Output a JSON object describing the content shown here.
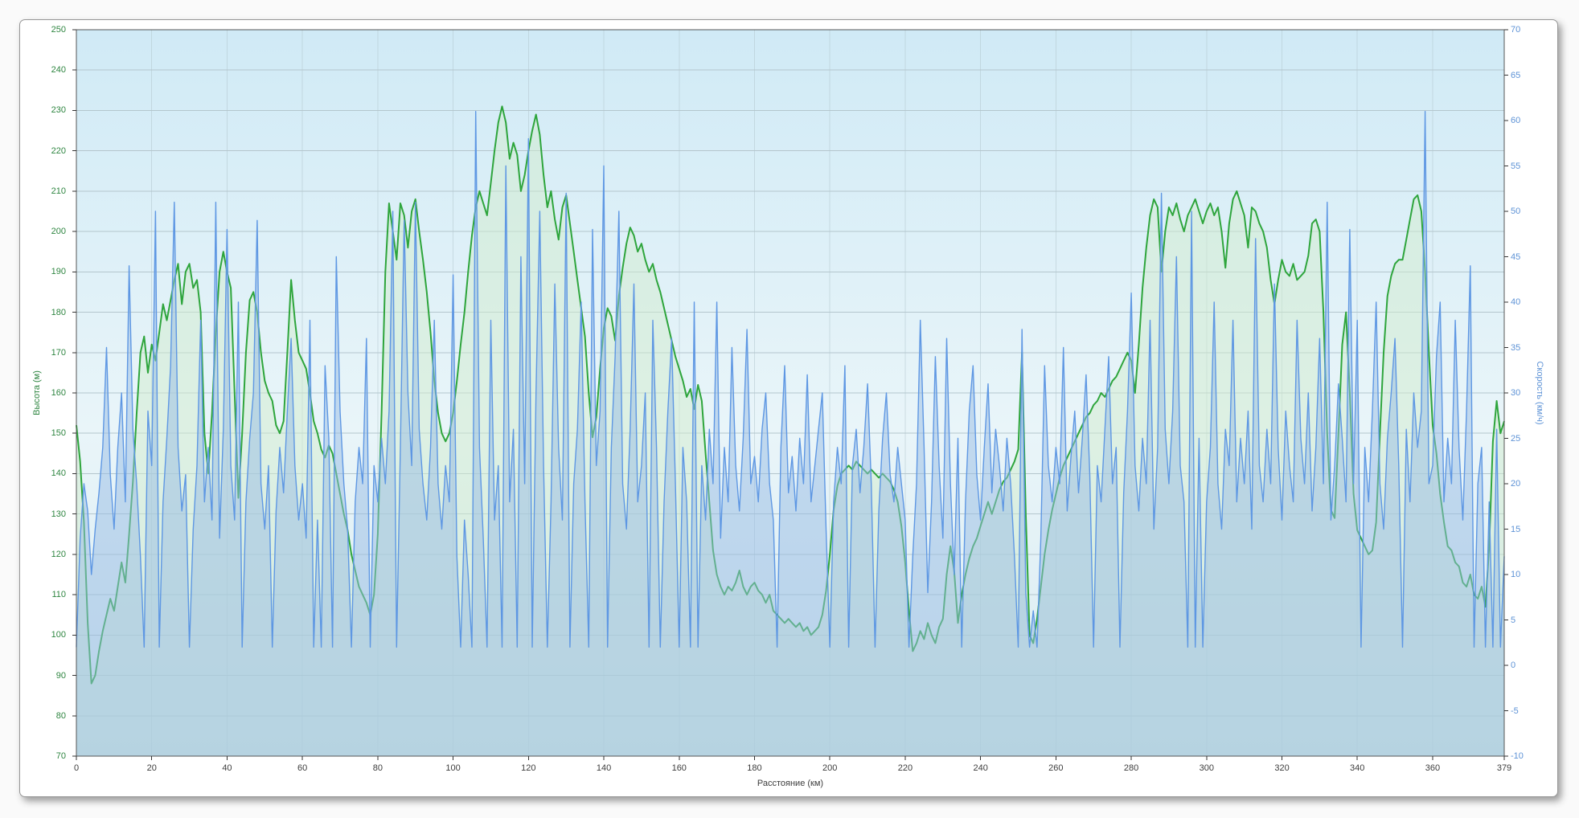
{
  "window": {
    "page_background": "#fafafa",
    "card_background": "#ffffff",
    "card_border": "#979797"
  },
  "chart_data": {
    "type": "line",
    "title": "",
    "legend": "none",
    "grid": true,
    "plot": {
      "bg_top": "#d0eaf6",
      "bg_mid": "#e9f5f9",
      "bg_bottom": "#d9ebf1",
      "gridline_color": "#b4c6cd",
      "vgrid_color": "rgba(178,198,206,0.55)",
      "border_color": "#555555",
      "tick_color": "#333333"
    },
    "x_axis": {
      "label": "Расстояние (км)",
      "min": 0,
      "max": 379,
      "step_km": 1,
      "ticks": [
        0,
        20,
        40,
        60,
        80,
        100,
        120,
        140,
        160,
        180,
        200,
        220,
        240,
        260,
        280,
        300,
        320,
        340,
        360,
        379
      ],
      "text_color": "#3c3c3c"
    },
    "y_left": {
      "label": "Высота (м)",
      "min": 70,
      "max": 250,
      "ticks": [
        70,
        80,
        90,
        100,
        110,
        120,
        130,
        140,
        150,
        160,
        170,
        180,
        190,
        200,
        210,
        220,
        230,
        240,
        250
      ],
      "text_color": "#2e8540"
    },
    "y_right": {
      "label": "Скорость (км/ч)",
      "min": -10,
      "max": 70,
      "ticks": [
        -10,
        -5,
        0,
        5,
        10,
        15,
        20,
        25,
        30,
        35,
        40,
        45,
        50,
        55,
        60,
        65,
        70
      ],
      "text_color": "#5e93d6"
    },
    "series": [
      {
        "name": "Высота",
        "axis": "left",
        "line_color": "#2ea53c",
        "line_width": 2,
        "fill_color": "rgba(210,236,205,0.5)",
        "values": [
          152,
          143,
          128,
          103,
          88,
          90,
          96,
          101,
          105,
          109,
          106,
          112,
          118,
          113,
          125,
          138,
          155,
          170,
          174,
          165,
          172,
          168,
          175,
          182,
          178,
          183,
          188,
          192,
          182,
          190,
          192,
          186,
          188,
          180,
          150,
          140,
          155,
          175,
          190,
          195,
          190,
          186,
          160,
          134,
          150,
          170,
          183,
          185,
          180,
          170,
          163,
          160,
          158,
          152,
          150,
          153,
          170,
          188,
          178,
          170,
          168,
          166,
          160,
          153,
          150,
          146,
          144,
          147,
          145,
          140,
          135,
          130,
          126,
          120,
          116,
          112,
          110,
          108,
          105,
          110,
          125,
          155,
          190,
          207,
          200,
          193,
          207,
          204,
          196,
          205,
          208,
          200,
          193,
          185,
          175,
          163,
          155,
          150,
          148,
          150,
          155,
          163,
          172,
          180,
          190,
          199,
          206,
          210,
          207,
          204,
          212,
          220,
          227,
          231,
          227,
          218,
          222,
          219,
          210,
          214,
          220,
          225,
          229,
          224,
          214,
          206,
          210,
          203,
          198,
          206,
          209,
          202,
          195,
          188,
          181,
          174,
          160,
          149,
          154,
          166,
          176,
          181,
          179,
          173,
          184,
          191,
          197,
          201,
          199,
          195,
          197,
          193,
          190,
          192,
          188,
          185,
          181,
          177,
          173,
          169,
          166,
          163,
          159,
          161,
          156,
          162,
          158,
          145,
          133,
          121,
          115,
          112,
          110,
          112,
          111,
          113,
          116,
          112,
          110,
          112,
          113,
          111,
          110,
          108,
          110,
          106,
          105,
          104,
          103,
          104,
          103,
          102,
          103,
          101,
          102,
          100,
          101,
          102,
          105,
          111,
          120,
          131,
          137,
          140,
          141,
          142,
          141,
          143,
          142,
          141,
          140,
          141,
          140,
          139,
          140,
          139,
          138,
          136,
          133,
          127,
          118,
          106,
          96,
          98,
          101,
          99,
          103,
          100,
          98,
          102,
          104,
          115,
          122,
          116,
          103,
          110,
          115,
          119,
          122,
          124,
          127,
          130,
          133,
          130,
          133,
          136,
          138,
          139,
          141,
          143,
          146,
          170,
          130,
          100,
          98,
          104,
          112,
          120,
          126,
          131,
          135,
          139,
          142,
          144,
          146,
          148,
          150,
          152,
          154,
          155,
          157,
          158,
          160,
          159,
          161,
          163,
          164,
          166,
          168,
          170,
          168,
          160,
          172,
          186,
          196,
          204,
          208,
          206,
          190,
          200,
          206,
          204,
          207,
          203,
          200,
          204,
          206,
          208,
          205,
          202,
          205,
          207,
          204,
          206,
          200,
          191,
          202,
          208,
          210,
          207,
          204,
          196,
          206,
          205,
          202,
          200,
          196,
          188,
          182,
          188,
          193,
          190,
          189,
          192,
          188,
          189,
          190,
          194,
          202,
          203,
          200,
          180,
          150,
          131,
          129,
          150,
          172,
          180,
          160,
          135,
          126,
          124,
          122,
          120,
          121,
          128,
          150,
          170,
          184,
          189,
          192,
          193,
          193,
          198,
          203,
          208,
          209,
          205,
          190,
          170,
          152,
          145,
          135,
          128,
          122,
          121,
          118,
          117,
          113,
          112,
          115,
          110,
          109,
          112,
          107,
          122,
          148,
          158,
          150,
          153
        ]
      },
      {
        "name": "Скорость",
        "axis": "right",
        "line_color": "#5e97e3",
        "line_width": 1.4,
        "fill_color": "rgba(151,188,228,0.5)",
        "values": [
          2,
          14,
          20,
          17,
          10,
          15,
          19,
          24,
          35,
          21,
          15,
          24,
          30,
          18,
          44,
          26,
          20,
          12,
          2,
          28,
          22,
          50,
          2,
          18,
          25,
          33,
          51,
          24,
          17,
          21,
          2,
          15,
          22,
          38,
          18,
          24,
          16,
          51,
          14,
          26,
          48,
          22,
          16,
          40,
          2,
          18,
          25,
          30,
          49,
          20,
          15,
          22,
          2,
          17,
          24,
          19,
          28,
          36,
          22,
          16,
          20,
          14,
          38,
          2,
          16,
          2,
          33,
          25,
          2,
          45,
          28,
          20,
          15,
          2,
          18,
          24,
          20,
          36,
          2,
          22,
          18,
          25,
          20,
          28,
          50,
          2,
          24,
          49,
          30,
          22,
          51,
          26,
          20,
          16,
          24,
          38,
          20,
          15,
          22,
          18,
          43,
          12,
          2,
          16,
          10,
          2,
          61,
          24,
          14,
          2,
          38,
          16,
          22,
          2,
          55,
          18,
          26,
          2,
          45,
          20,
          58,
          2,
          30,
          50,
          22,
          2,
          18,
          42,
          24,
          16,
          52,
          2,
          20,
          26,
          40,
          18,
          2,
          48,
          22,
          28,
          55,
          2,
          24,
          34,
          50,
          20,
          15,
          26,
          42,
          18,
          22,
          30,
          2,
          38,
          24,
          2,
          18,
          28,
          36,
          20,
          2,
          24,
          18,
          2,
          40,
          2,
          22,
          16,
          26,
          20,
          40,
          14,
          24,
          18,
          35,
          22,
          17,
          25,
          37,
          20,
          23,
          18,
          26,
          30,
          20,
          16,
          2,
          24,
          33,
          19,
          23,
          17,
          25,
          20,
          32,
          18,
          22,
          26,
          30,
          15,
          2,
          18,
          24,
          20,
          33,
          2,
          22,
          26,
          19,
          24,
          31,
          20,
          2,
          17,
          25,
          30,
          21,
          18,
          24,
          20,
          16,
          2,
          12,
          20,
          38,
          24,
          8,
          18,
          34,
          22,
          14,
          36,
          20,
          10,
          25,
          2,
          18,
          28,
          33,
          21,
          16,
          24,
          31,
          19,
          26,
          22,
          17,
          25,
          20,
          12,
          2,
          37,
          8,
          2,
          6,
          2,
          14,
          33,
          22,
          18,
          24,
          20,
          35,
          17,
          23,
          28,
          19,
          25,
          32,
          21,
          2,
          22,
          18,
          26,
          34,
          20,
          24,
          2,
          19,
          28,
          41,
          22,
          17,
          25,
          20,
          38,
          15,
          24,
          52,
          26,
          20,
          28,
          45,
          22,
          18,
          2,
          50,
          2,
          25,
          2,
          18,
          24,
          40,
          20,
          15,
          26,
          22,
          38,
          18,
          25,
          20,
          28,
          15,
          47,
          22,
          18,
          26,
          20,
          42,
          24,
          16,
          28,
          22,
          18,
          38,
          25,
          20,
          30,
          17,
          24,
          36,
          20,
          51,
          16,
          22,
          31,
          25,
          18,
          48,
          20,
          38,
          2,
          24,
          18,
          28,
          40,
          20,
          15,
          25,
          30,
          36,
          22,
          2,
          26,
          18,
          30,
          24,
          28,
          61,
          20,
          22,
          34,
          40,
          18,
          25,
          20,
          38,
          24,
          16,
          28,
          44,
          2,
          20,
          24,
          2,
          18,
          2,
          26,
          2,
          12
        ]
      }
    ]
  }
}
